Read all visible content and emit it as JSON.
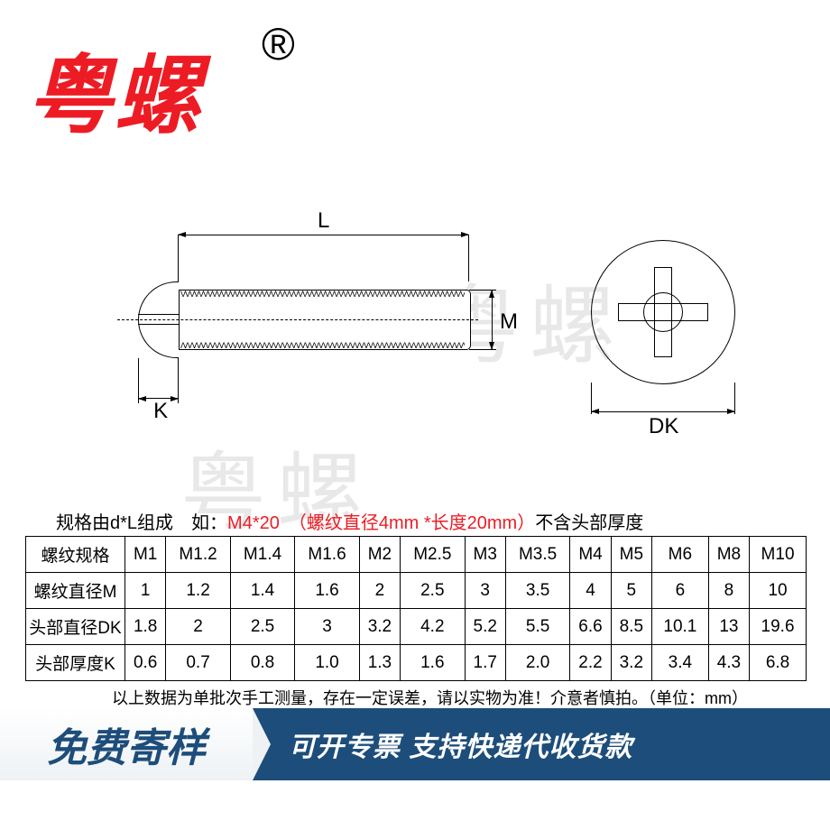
{
  "brand": "粤螺",
  "reg": "®",
  "watermark": "粤螺",
  "dims": {
    "L": "L",
    "M": "M",
    "K": "K",
    "DK": "DK"
  },
  "spec": {
    "prefix": "规格由d*L组成　如：",
    "example": "M4*20　（螺纹直径4mm *长度20mm）",
    "suffix": "不含头部厚度"
  },
  "table": {
    "rows": [
      {
        "label": "螺纹规格",
        "cells": [
          "M1",
          "M1.2",
          "M1.4",
          "M1.6",
          "M2",
          "M2.5",
          "M3",
          "M3.5",
          "M4",
          "M5",
          "M6",
          "M8",
          "M10"
        ]
      },
      {
        "label": "螺纹直径M",
        "cells": [
          "1",
          "1.2",
          "1.4",
          "1.6",
          "2",
          "2.5",
          "3",
          "3.5",
          "4",
          "5",
          "6",
          "8",
          "10"
        ]
      },
      {
        "label": "头部直径DK",
        "cells": [
          "1.8",
          "2",
          "2.5",
          "3",
          "3.2",
          "4.2",
          "5.2",
          "5.5",
          "6.6",
          "8.5",
          "10.1",
          "13",
          "19.6"
        ]
      },
      {
        "label": "头部厚度K",
        "cells": [
          "0.6",
          "0.7",
          "0.8",
          "1.0",
          "1.3",
          "1.6",
          "1.7",
          "2.0",
          "2.2",
          "3.2",
          "3.4",
          "4.3",
          "6.8"
        ]
      }
    ]
  },
  "note": "以上数据为单批次手工测量，存在一定误差，请以实物为准！介意者慎拍。（单位：mm）",
  "banner": {
    "left": "免费寄样",
    "right": "可开专票 支持快递代收货款"
  },
  "colors": {
    "brand": "#ed1c24",
    "banner_bg": "#1d4d7a",
    "banner_text": "#ffffff"
  }
}
